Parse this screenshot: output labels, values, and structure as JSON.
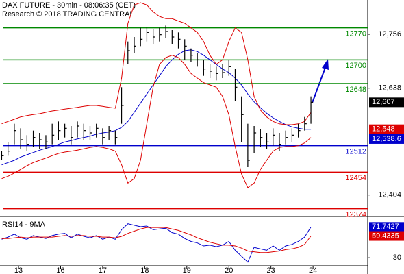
{
  "chart_data": {
    "type": "ohlc",
    "title": "DAX FUTURE - 30min - 08:06:35 (CET)",
    "subtitle": "Research © 2018 TRADING CENTRAL",
    "xlim": [
      -0.44,
      8.3
    ],
    "xticks": [
      {
        "value": 0,
        "label": "13"
      },
      {
        "value": 1,
        "label": "16"
      },
      {
        "value": 2,
        "label": "17"
      },
      {
        "value": 3,
        "label": "18"
      },
      {
        "value": 4,
        "label": "19"
      },
      {
        "value": 5,
        "label": "20"
      },
      {
        "value": 6,
        "label": "23"
      },
      {
        "value": 7,
        "label": "24"
      }
    ],
    "ylim": [
      12357,
      12831
    ],
    "yticks": [
      {
        "value": 12756,
        "label": "12,756"
      },
      {
        "value": 12638,
        "label": "12,638"
      },
      {
        "value": 12404,
        "label": "12,404"
      }
    ],
    "x": [
      -0.4,
      -0.25,
      -0.1,
      0.05,
      0.2,
      0.35,
      0.5,
      0.65,
      0.8,
      0.95,
      1.1,
      1.25,
      1.4,
      1.55,
      1.7,
      1.85,
      2.0,
      2.15,
      2.3,
      2.45,
      2.6,
      2.75,
      2.9,
      3.05,
      3.2,
      3.35,
      3.5,
      3.65,
      3.8,
      3.95,
      4.1,
      4.25,
      4.4,
      4.55,
      4.7,
      4.85,
      5.0,
      5.15,
      5.3,
      5.45,
      5.6,
      5.75,
      5.9,
      6.05,
      6.2,
      6.35,
      6.5,
      6.65,
      6.8,
      6.95
    ],
    "high": [
      12500,
      12520,
      12560,
      12550,
      12535,
      12545,
      12540,
      12535,
      12560,
      12565,
      12560,
      12555,
      12565,
      12560,
      12555,
      12560,
      12550,
      12555,
      12545,
      12640,
      12740,
      12750,
      12770,
      12772,
      12768,
      12770,
      12775,
      12765,
      12760,
      12745,
      12725,
      12715,
      12700,
      12690,
      12685,
      12690,
      12700,
      12680,
      12620,
      12560,
      12555,
      12548,
      12540,
      12550,
      12540,
      12545,
      12550,
      12560,
      12575,
      12620
    ],
    "low": [
      12480,
      12490,
      12515,
      12505,
      12500,
      12510,
      12505,
      12505,
      12515,
      12525,
      12530,
      12515,
      12530,
      12525,
      12525,
      12530,
      12515,
      12525,
      12515,
      12560,
      12690,
      12715,
      12730,
      12740,
      12735,
      12740,
      12748,
      12735,
      12725,
      12700,
      12695,
      12685,
      12665,
      12660,
      12655,
      12660,
      12665,
      12610,
      12520,
      12465,
      12495,
      12510,
      12505,
      12512,
      12500,
      12515,
      12520,
      12530,
      12545,
      12560
    ],
    "close": [
      12490,
      12500,
      12545,
      12525,
      12515,
      12530,
      12525,
      12520,
      12535,
      12545,
      12550,
      12530,
      12555,
      12545,
      12540,
      12550,
      12530,
      12545,
      12530,
      12600,
      12720,
      12730,
      12745,
      12760,
      12750,
      12755,
      12762,
      12750,
      12745,
      12730,
      12710,
      12700,
      12680,
      12675,
      12670,
      12672,
      12685,
      12640,
      12580,
      12480,
      12540,
      12530,
      12520,
      12535,
      12515,
      12530,
      12535,
      12545,
      12560,
      12607
    ],
    "series": [
      {
        "color": "#0000cc",
        "values": [
          12470,
          12475,
          12480,
          12487,
          12492,
          12497,
          12502,
          12506,
          12510,
          12515,
          12520,
          12523,
          12527,
          12530,
          12533,
          12537,
          12540,
          12542,
          12545,
          12552,
          12565,
          12585,
          12605,
          12625,
          12645,
          12665,
          12685,
          12700,
          12712,
          12720,
          12722,
          12718,
          12710,
          12700,
          12690,
          12680,
          12672,
          12660,
          12645,
          12625,
          12608,
          12595,
          12583,
          12573,
          12565,
          12558,
          12553,
          12550,
          12548,
          12548
        ]
      },
      {
        "color": "#dd0000",
        "values": [
          12560,
          12565,
          12570,
          12575,
          12578,
          12580,
          12582,
          12585,
          12588,
          12590,
          12592,
          12594,
          12596,
          12598,
          12600,
          12600,
          12598,
          12596,
          12594,
          12660,
          12780,
          12820,
          12825,
          12820,
          12805,
          12795,
          12790,
          12790,
          12785,
          12780,
          12770,
          12760,
          12740,
          12710,
          12690,
          12700,
          12740,
          12770,
          12760,
          12700,
          12620,
          12590,
          12575,
          12565,
          12560,
          12558,
          12558,
          12560,
          12565,
          12585
        ]
      },
      {
        "color": "#dd0000",
        "values": [
          12440,
          12445,
          12452,
          12460,
          12468,
          12475,
          12480,
          12485,
          12490,
          12495,
          12498,
          12500,
          12502,
          12505,
          12508,
          12510,
          12508,
          12505,
          12500,
          12470,
          12430,
          12440,
          12480,
          12560,
          12640,
          12690,
          12705,
          12710,
          12705,
          12690,
          12670,
          12660,
          12650,
          12645,
          12640,
          12620,
          12580,
          12510,
          12450,
          12420,
          12430,
          12460,
          12480,
          12500,
          12508,
          12510,
          12510,
          12512,
          12518,
          12530
        ]
      }
    ],
    "levels": [
      {
        "value": 12770,
        "color": "#008800"
      },
      {
        "value": 12700,
        "color": "#008800"
      },
      {
        "value": 12648,
        "color": "#008800"
      },
      {
        "value": 12512,
        "color": "#0000cc"
      },
      {
        "value": 12454,
        "color": "#dd0000"
      },
      {
        "value": 12374,
        "color": "#dd0000"
      }
    ],
    "price_labels": [
      {
        "value": 12607,
        "label": "12,607",
        "color": "#000000"
      },
      {
        "value": 12548,
        "label": "12,548",
        "color": "#dd0000"
      },
      {
        "value": 12538.6,
        "label": "12,538.6",
        "color": "#0000cc"
      }
    ],
    "rsi": {
      "title": "RSI14 - 9MA",
      "ylim": [
        19,
        86
      ],
      "yticks": [
        30
      ],
      "series": [
        {
          "color": "#0000cc",
          "values": [
            55,
            58,
            62,
            57,
            55,
            60,
            58,
            56,
            60,
            62,
            63,
            57,
            62,
            59,
            57,
            60,
            55,
            58,
            55,
            68,
            76,
            74,
            72,
            73,
            68,
            69,
            70,
            64,
            62,
            56,
            52,
            50,
            46,
            47,
            45,
            47,
            52,
            40,
            32,
            24,
            44,
            42,
            40,
            46,
            40,
            46,
            48,
            52,
            58,
            71.7427
          ]
        },
        {
          "color": "#dd0000",
          "values": [
            56,
            56,
            57,
            58,
            57,
            58,
            58,
            58,
            58,
            59,
            60,
            59,
            60,
            60,
            59,
            59,
            58,
            58,
            57,
            59,
            63,
            66,
            69,
            71,
            71,
            71,
            71,
            69,
            67,
            64,
            61,
            57,
            54,
            51,
            49,
            47,
            47,
            46,
            43,
            39,
            38,
            37,
            37,
            38,
            39,
            41,
            42,
            44,
            48,
            59.4335
          ]
        }
      ]
    }
  }
}
